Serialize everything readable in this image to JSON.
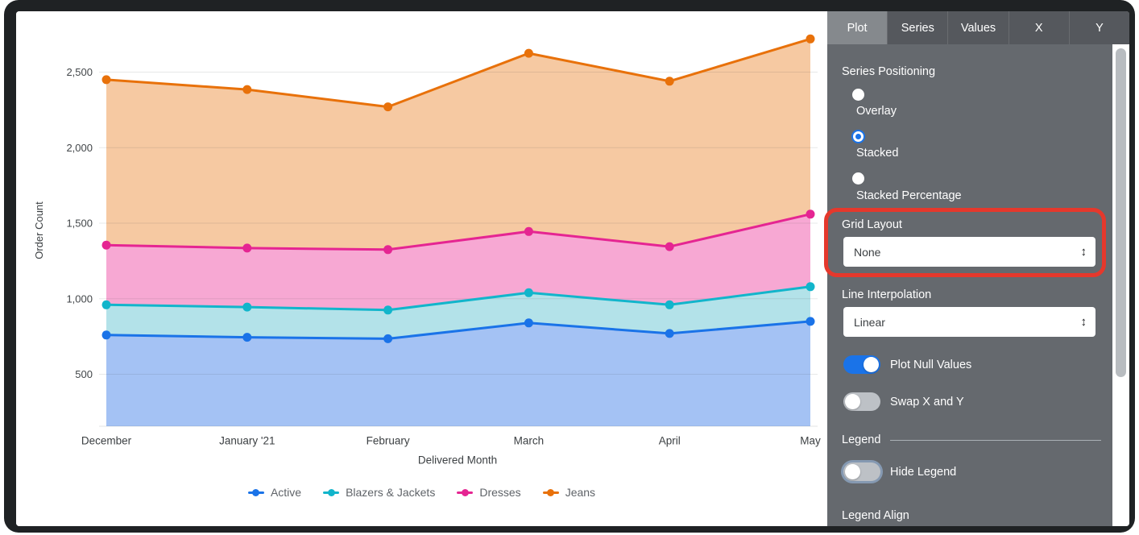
{
  "chart_data": {
    "type": "area",
    "stacking": "stacked",
    "xlabel": "Delivered Month",
    "ylabel": "Order Count",
    "categories": [
      "December",
      "January '21",
      "February",
      "March",
      "April",
      "May"
    ],
    "series": [
      {
        "name": "Active",
        "color": "#1a73e8",
        "fill": "#a4c2f4",
        "values": [
          760,
          745,
          735,
          840,
          770,
          850
        ]
      },
      {
        "name": "Blazers & Jackets",
        "color": "#12b5cb",
        "fill": "#b3e2e9",
        "values": [
          200,
          200,
          190,
          200,
          190,
          230
        ]
      },
      {
        "name": "Dresses",
        "color": "#e52592",
        "fill": "#f7a8d3",
        "values": [
          395,
          390,
          400,
          405,
          385,
          480
        ]
      },
      {
        "name": "Jeans",
        "color": "#e8710a",
        "fill": "#f6c9a2",
        "values": [
          1095,
          1050,
          945,
          1180,
          1095,
          1160
        ]
      }
    ],
    "stacked_totals": [
      2450,
      2385,
      2270,
      2625,
      2440,
      2720
    ],
    "y_ticks": [
      500,
      1000,
      1500,
      2000,
      2500
    ],
    "y_tick_labels": [
      "500",
      "1,000",
      "1,500",
      "2,000",
      "2,500"
    ],
    "y_visible_range": [
      150,
      2790
    ],
    "grid": true,
    "legend_position": "bottom"
  },
  "panel": {
    "tabs": [
      {
        "label": "Plot",
        "active": true
      },
      {
        "label": "Series",
        "active": false
      },
      {
        "label": "Values",
        "active": false
      },
      {
        "label": "X",
        "active": false
      },
      {
        "label": "Y",
        "active": false
      }
    ],
    "series_positioning": {
      "label": "Series Positioning",
      "options": [
        {
          "label": "Overlay",
          "selected": false
        },
        {
          "label": "Stacked",
          "selected": true
        },
        {
          "label": "Stacked Percentage",
          "selected": false
        }
      ]
    },
    "grid_layout": {
      "label": "Grid Layout",
      "value": "None"
    },
    "line_interpolation": {
      "label": "Line Interpolation",
      "value": "Linear"
    },
    "plot_null_values": {
      "label": "Plot Null Values",
      "on": true
    },
    "swap_x_y": {
      "label": "Swap X and Y",
      "on": false
    },
    "legend_section": {
      "label": "Legend"
    },
    "hide_legend": {
      "label": "Hide Legend",
      "on": false
    },
    "legend_align": {
      "label": "Legend Align"
    }
  },
  "icons": {
    "select_arrows": "↕"
  },
  "annotation": {
    "shape": "rounded-rectangle",
    "color": "#e5382c"
  }
}
